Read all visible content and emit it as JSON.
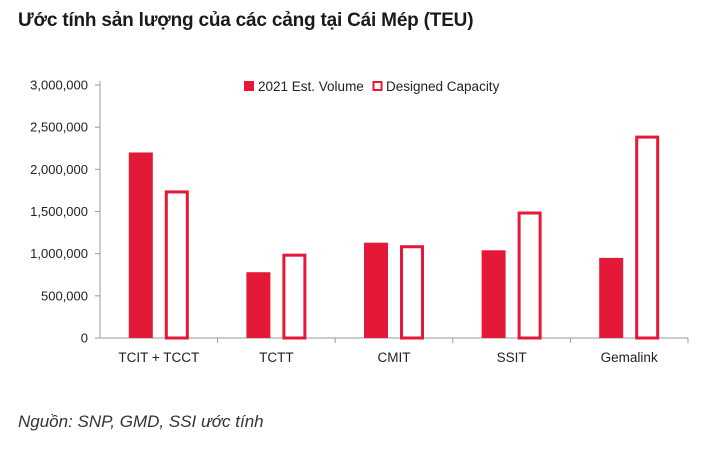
{
  "title": "Ước tính sản lượng của các cảng tại Cái Mép (TEU)",
  "source": "Nguồn: SNP, GMD, SSI ước tính",
  "colors": {
    "volume": "#e31937",
    "capacity_stroke": "#e31937",
    "capacity_fill": "#ffffff",
    "axis": "#9a9a9a",
    "text": "#222222"
  },
  "chart_data": {
    "type": "bar",
    "categories": [
      "TCIT + TCCT",
      "TCTT",
      "CMIT",
      "SSIT",
      "Gemalink"
    ],
    "series": [
      {
        "name": "2021 Est. Volume",
        "values": [
          2200000,
          780000,
          1130000,
          1040000,
          950000
        ]
      },
      {
        "name": "Designed Capacity",
        "values": [
          1750000,
          1000000,
          1100000,
          1500000,
          2400000
        ]
      }
    ],
    "yticks": [
      "0",
      "500,000",
      "1,000,000",
      "1,500,000",
      "2,000,000",
      "2,500,000",
      "3,000,000"
    ],
    "ylim": [
      0,
      3000000
    ],
    "grid": false,
    "legend": "top-center"
  }
}
